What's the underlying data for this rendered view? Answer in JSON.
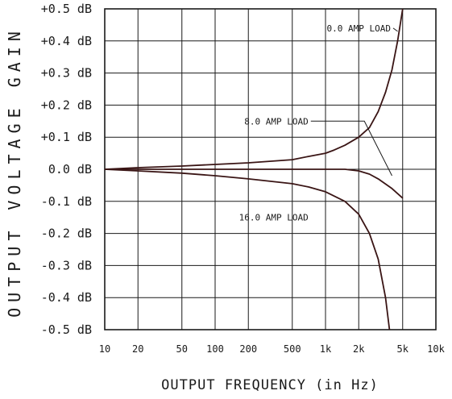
{
  "chart_data": {
    "type": "line",
    "title": "",
    "xlabel": "OUTPUT FREQUENCY (in Hz)",
    "ylabel": "OUTPUT VOLTAGE GAIN",
    "x_scale": "log",
    "xlim": [
      10,
      10000
    ],
    "ylim": [
      -0.5,
      0.5
    ],
    "grid": true,
    "x_ticks": [
      {
        "value": 10,
        "label": "10"
      },
      {
        "value": 20,
        "label": "20"
      },
      {
        "value": 50,
        "label": "50"
      },
      {
        "value": 100,
        "label": "100"
      },
      {
        "value": 200,
        "label": "200"
      },
      {
        "value": 500,
        "label": "500"
      },
      {
        "value": 1000,
        "label": "1k"
      },
      {
        "value": 2000,
        "label": "2k"
      },
      {
        "value": 5000,
        "label": "5k"
      },
      {
        "value": 10000,
        "label": "10k"
      }
    ],
    "y_ticks": [
      {
        "value": 0.5,
        "label": "+0.5  dB"
      },
      {
        "value": 0.4,
        "label": "+0.4  dB"
      },
      {
        "value": 0.3,
        "label": "+0.3  dB"
      },
      {
        "value": 0.2,
        "label": "+0.2  dB"
      },
      {
        "value": 0.1,
        "label": "+0.1  dB"
      },
      {
        "value": 0.0,
        "label": "0.0  dB"
      },
      {
        "value": -0.1,
        "label": "-0.1  dB"
      },
      {
        "value": -0.2,
        "label": "-0.2  dB"
      },
      {
        "value": -0.3,
        "label": "-0.3  dB"
      },
      {
        "value": -0.4,
        "label": "-0.4  dB"
      },
      {
        "value": -0.5,
        "label": "-0.5  dB"
      }
    ],
    "series": [
      {
        "name": "0.0 AMP LOAD",
        "color": "#3a1515",
        "points": [
          [
            10,
            0.0
          ],
          [
            20,
            0.005
          ],
          [
            50,
            0.01
          ],
          [
            100,
            0.015
          ],
          [
            200,
            0.02
          ],
          [
            500,
            0.03
          ],
          [
            700,
            0.04
          ],
          [
            1000,
            0.05
          ],
          [
            1200,
            0.06
          ],
          [
            1500,
            0.075
          ],
          [
            2000,
            0.1
          ],
          [
            2500,
            0.13
          ],
          [
            3000,
            0.18
          ],
          [
            3500,
            0.24
          ],
          [
            4000,
            0.31
          ],
          [
            4500,
            0.4
          ],
          [
            5000,
            0.5
          ]
        ]
      },
      {
        "name": "8.0 AMP LOAD",
        "color": "#3a1515",
        "points": [
          [
            10,
            0.0
          ],
          [
            100,
            0.0
          ],
          [
            500,
            0.0
          ],
          [
            1000,
            0.0
          ],
          [
            1500,
            0.0
          ],
          [
            2000,
            -0.005
          ],
          [
            2500,
            -0.015
          ],
          [
            3000,
            -0.03
          ],
          [
            4000,
            -0.06
          ],
          [
            5000,
            -0.09
          ]
        ]
      },
      {
        "name": "16.0 AMP LOAD",
        "color": "#3a1515",
        "points": [
          [
            10,
            0.0
          ],
          [
            20,
            -0.005
          ],
          [
            50,
            -0.012
          ],
          [
            100,
            -0.02
          ],
          [
            200,
            -0.03
          ],
          [
            500,
            -0.045
          ],
          [
            700,
            -0.055
          ],
          [
            1000,
            -0.07
          ],
          [
            1500,
            -0.1
          ],
          [
            2000,
            -0.14
          ],
          [
            2500,
            -0.2
          ],
          [
            3000,
            -0.28
          ],
          [
            3500,
            -0.4
          ],
          [
            3800,
            -0.5
          ]
        ]
      }
    ],
    "annotations": [
      {
        "text": "0.0 AMP LOAD",
        "series": "0.0 AMP LOAD",
        "anchor_x": 3900,
        "anchor_y": 0.44,
        "pointer_x": 4500,
        "pointer_y": 0.43
      },
      {
        "text": "8.0 AMP LOAD",
        "series": "8.0 AMP LOAD",
        "anchor_x": 700,
        "anchor_y": 0.15,
        "pointer_x": 2250,
        "pointer_y": 0.15,
        "end_x": 4000,
        "end_y": -0.02
      },
      {
        "text": "16.0 AMP LOAD",
        "series": "16.0 AMP LOAD",
        "anchor_x": 700,
        "anchor_y": -0.15
      }
    ]
  }
}
